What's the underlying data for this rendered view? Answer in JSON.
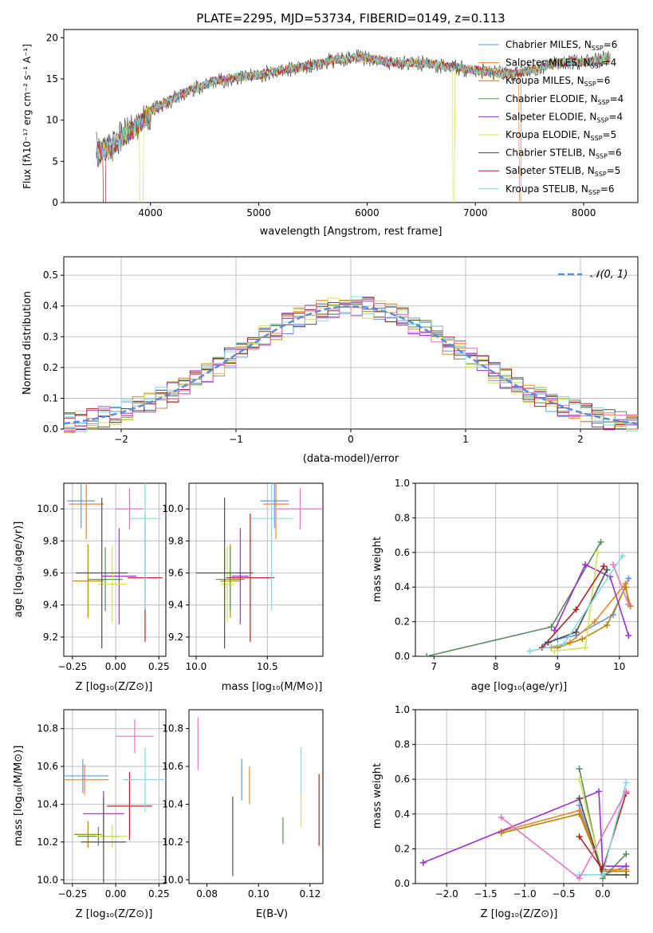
{
  "colors": {
    "axis": "#000000",
    "grid": "#b0b0b0",
    "series": [
      "#6495ed",
      "#e6862e",
      "#b8860b",
      "#5b8a5b",
      "#9a32cd",
      "#d4e157",
      "#4d4d4d",
      "#b22222",
      "#7fdbe0",
      "#e377c2"
    ],
    "normal_curve": "#5b8dd6"
  },
  "chart_data": [
    {
      "id": "spectrum",
      "type": "line",
      "title": "PLATE=2295, MJD=53734, FIBERID=0149, z=0.113",
      "xlabel": "wavelength [Angstrom, rest frame]",
      "ylabel": "Flux [fλ10⁻¹⁷ erg cm⁻² s⁻¹ A⁻¹]",
      "xlim": [
        3200,
        8500
      ],
      "ylim": [
        0,
        21
      ],
      "xticks": [
        4000,
        5000,
        6000,
        7000,
        8000
      ],
      "yticks": [
        0,
        5,
        10,
        15,
        20
      ],
      "grid": false,
      "legend_position": "top-right",
      "x": [
        3500,
        3600,
        3700,
        3800,
        3900,
        4000,
        4100,
        4200,
        4300,
        4400,
        4500,
        4600,
        4700,
        4800,
        4900,
        5000,
        5100,
        5200,
        5300,
        5400,
        5500,
        5600,
        5700,
        5800,
        5900,
        6000,
        6100,
        6200,
        6300,
        6400,
        6500,
        6600,
        6700,
        6800,
        6900,
        7000,
        7100,
        7200,
        7300,
        7400,
        7500,
        7600,
        7700,
        7800,
        7900,
        8000,
        8100,
        8200,
        8250
      ],
      "y": [
        6.5,
        6.2,
        7.5,
        8.5,
        9.5,
        11.0,
        11.8,
        12.5,
        13.3,
        13.8,
        14.2,
        14.8,
        14.9,
        15.2,
        15.3,
        15.4,
        15.8,
        16.0,
        16.2,
        16.4,
        16.8,
        17.0,
        17.3,
        17.4,
        17.6,
        17.5,
        17.3,
        17.0,
        16.9,
        17.0,
        16.9,
        16.8,
        16.6,
        16.5,
        16.2,
        16.1,
        15.9,
        15.7,
        15.6,
        15.7,
        16.0,
        16.4,
        16.8,
        17.0,
        17.1,
        17.0,
        17.2,
        17.4,
        17.6
      ],
      "series": [
        {
          "name": "Chabrier MILES, N",
          "sub": "SSP",
          "suffix": "=6"
        },
        {
          "name": "Salpeter MILES, N",
          "sub": "SSP",
          "suffix": "=4"
        },
        {
          "name": "Kroupa MILES, N",
          "sub": "SSP",
          "suffix": "=6"
        },
        {
          "name": "Chabrier ELODIE, N",
          "sub": "SSP",
          "suffix": "=4"
        },
        {
          "name": "Salpeter ELODIE, N",
          "sub": "SSP",
          "suffix": "=4"
        },
        {
          "name": "Kroupa ELODIE, N",
          "sub": "SSP",
          "suffix": "=5"
        },
        {
          "name": "Chabrier STELIB, N",
          "sub": "SSP",
          "suffix": "=6"
        },
        {
          "name": "Salpeter STELIB, N",
          "sub": "SSP",
          "suffix": "=5"
        },
        {
          "name": "Kroupa STELIB, N",
          "sub": "SSP",
          "suffix": "=6"
        }
      ]
    },
    {
      "id": "residuals",
      "type": "step",
      "xlabel": "(data-model)/error",
      "ylabel": "Normed distribution",
      "xlim": [
        -2.5,
        2.5
      ],
      "ylim": [
        0,
        0.56
      ],
      "xticks": [
        -2,
        -1,
        0,
        1,
        2
      ],
      "xtick_labels": [
        "−2",
        "−1",
        "0",
        "1",
        "2"
      ],
      "yticks": [
        0.0,
        0.1,
        0.2,
        0.3,
        0.4,
        0.5
      ],
      "ytick_labels": [
        "0.0",
        "0.1",
        "0.2",
        "0.3",
        "0.4",
        "0.5"
      ],
      "grid": true,
      "legend_position": "top-right",
      "legend_label": "𝒩(0, 1)",
      "bin_width": 0.1
    },
    {
      "id": "age_vs_Z",
      "type": "errorbar",
      "xlabel": "Z [log₁₀(Z/Z⊙)]",
      "ylabel": "age  [log₁₀(age/yr)]",
      "xlim": [
        -0.3,
        0.29
      ],
      "ylim": [
        9.08,
        10.16
      ],
      "xticks": [
        -0.25,
        0.0,
        0.25
      ],
      "xtick_labels": [
        "−0.25",
        "0.00",
        "0.25"
      ],
      "yticks": [
        9.2,
        9.4,
        9.6,
        9.8,
        10.0
      ],
      "ytick_labels": [
        "9.2",
        "9.4",
        "9.6",
        "9.8",
        "10.0"
      ],
      "grid": true,
      "points": [
        {
          "c": 0,
          "x": -0.2,
          "y": 10.05,
          "xerr": 0.08,
          "yerr": 0.17
        },
        {
          "c": 1,
          "x": -0.17,
          "y": 10.03,
          "xerr": 0.1,
          "yerr": 0.22
        },
        {
          "c": 2,
          "x": -0.16,
          "y": 9.55,
          "xerr": 0.09,
          "yerr": 0.23
        },
        {
          "c": 3,
          "x": -0.06,
          "y": 9.56,
          "xerr": 0.1,
          "yerr": 0.2
        },
        {
          "c": 4,
          "x": 0.02,
          "y": 9.58,
          "xerr": 0.1,
          "yerr": 0.3
        },
        {
          "c": 5,
          "x": -0.02,
          "y": 9.53,
          "xerr": 0.08,
          "yerr": 0.24
        },
        {
          "c": 6,
          "x": -0.08,
          "y": 9.6,
          "xerr": 0.15,
          "yerr": 0.47
        },
        {
          "c": 7,
          "x": 0.17,
          "y": 9.57,
          "xerr": 0.1,
          "yerr": 0.4
        },
        {
          "c": 8,
          "x": 0.17,
          "y": 9.94,
          "xerr": 0.09,
          "yerr": 0.57
        },
        {
          "c": 9,
          "x": 0.08,
          "y": 10.0,
          "xerr": 0.08,
          "yerr": 0.13
        }
      ]
    },
    {
      "id": "age_vs_mass",
      "type": "errorbar",
      "xlabel": "mass [log₁₀(M/M⊙)]",
      "ylabel": "",
      "xlim": [
        9.95,
        10.89
      ],
      "ylim": [
        9.08,
        10.16
      ],
      "xticks": [
        10.0,
        10.5
      ],
      "xtick_labels": [
        "10.0",
        "10.5"
      ],
      "yticks": [
        9.2,
        9.4,
        9.6,
        9.8,
        10.0
      ],
      "ytick_labels": [
        "9.2",
        "9.4",
        "9.6",
        "9.8",
        "10.0"
      ],
      "grid": true,
      "points": [
        {
          "c": 0,
          "x": 10.55,
          "y": 10.05,
          "xerr": 0.1,
          "yerr": 0.17
        },
        {
          "c": 1,
          "x": 10.56,
          "y": 10.03,
          "xerr": 0.09,
          "yerr": 0.22
        },
        {
          "c": 2,
          "x": 10.24,
          "y": 9.55,
          "xerr": 0.07,
          "yerr": 0.23
        },
        {
          "c": 3,
          "x": 10.24,
          "y": 9.56,
          "xerr": 0.1,
          "yerr": 0.2
        },
        {
          "c": 4,
          "x": 10.31,
          "y": 9.58,
          "xerr": 0.06,
          "yerr": 0.3
        },
        {
          "c": 5,
          "x": 10.22,
          "y": 9.53,
          "xerr": 0.05,
          "yerr": 0.24
        },
        {
          "c": 6,
          "x": 10.2,
          "y": 9.6,
          "xerr": 0.2,
          "yerr": 0.47
        },
        {
          "c": 7,
          "x": 10.38,
          "y": 9.57,
          "xerr": 0.17,
          "yerr": 0.4
        },
        {
          "c": 8,
          "x": 10.53,
          "y": 9.94,
          "xerr": 0.15,
          "yerr": 0.57
        },
        {
          "c": 9,
          "x": 10.73,
          "y": 10.0,
          "xerr": 0.16,
          "yerr": 0.13
        }
      ]
    },
    {
      "id": "weight_vs_age",
      "type": "line",
      "xlabel": "age  [log₁₀(age/yr)]",
      "ylabel": "mass weight",
      "xlim": [
        6.7,
        10.3
      ],
      "ylim": [
        0,
        1
      ],
      "xticks": [
        7,
        8,
        9,
        10
      ],
      "xtick_labels": [
        "7",
        "8",
        "9",
        "10"
      ],
      "yticks": [
        0.0,
        0.2,
        0.4,
        0.6,
        0.8,
        1.0
      ],
      "ytick_labels": [
        "0.0",
        "0.2",
        "0.4",
        "0.6",
        "0.8",
        "1.0"
      ],
      "grid": true,
      "series": [
        {
          "c": 0,
          "x": [
            8.8,
            9.0,
            9.3,
            9.9,
            10.15
          ],
          "y": [
            0.07,
            0.1,
            0.12,
            0.24,
            0.45
          ]
        },
        {
          "c": 1,
          "x": [
            8.9,
            9.2,
            9.6,
            10.1,
            10.15
          ],
          "y": [
            0.05,
            0.08,
            0.2,
            0.42,
            0.3
          ]
        },
        {
          "c": 2,
          "x": [
            9.0,
            9.4,
            9.8,
            10.1,
            10.18
          ],
          "y": [
            0.05,
            0.1,
            0.18,
            0.4,
            0.29
          ]
        },
        {
          "c": 3,
          "x": [
            6.88,
            8.9,
            9.7
          ],
          "y": [
            0.0,
            0.17,
            0.66
          ]
        },
        {
          "c": 4,
          "x": [
            8.95,
            9.45,
            9.85,
            10.15
          ],
          "y": [
            0.15,
            0.53,
            0.46,
            0.12
          ]
        },
        {
          "c": 5,
          "x": [
            8.95,
            9.45,
            9.65
          ],
          "y": [
            0.03,
            0.05,
            0.6
          ]
        },
        {
          "c": 6,
          "x": [
            8.85,
            9.3,
            9.8
          ],
          "y": [
            0.08,
            0.14,
            0.5
          ]
        },
        {
          "c": 7,
          "x": [
            8.75,
            9.3,
            9.75
          ],
          "y": [
            0.05,
            0.27,
            0.52
          ]
        },
        {
          "c": 8,
          "x": [
            8.55,
            9.1,
            10.05
          ],
          "y": [
            0.03,
            0.07,
            0.58
          ]
        },
        {
          "c": 9,
          "x": [
            9.9,
            10.15
          ],
          "y": [
            0.53,
            0.3
          ]
        }
      ]
    },
    {
      "id": "mass_vs_Z",
      "type": "errorbar",
      "xlabel": "Z [log₁₀(Z/Z⊙)]",
      "ylabel": "mass [log₁₀(M/M⊙)]",
      "xlim": [
        -0.3,
        0.29
      ],
      "ylim": [
        9.98,
        10.9
      ],
      "xticks": [
        -0.25,
        0.0,
        0.25
      ],
      "xtick_labels": [
        "−0.25",
        "0.00",
        "0.25"
      ],
      "yticks": [
        10.0,
        10.2,
        10.4,
        10.6,
        10.8
      ],
      "ytick_labels": [
        "10.0",
        "10.2",
        "10.4",
        "10.6",
        "10.8"
      ],
      "grid": true,
      "points": [
        {
          "c": 0,
          "x": -0.19,
          "y": 10.55,
          "xerr": 0.15,
          "yerr": 0.09
        },
        {
          "c": 1,
          "x": -0.18,
          "y": 10.53,
          "xerr": 0.14,
          "yerr": 0.08
        },
        {
          "c": 2,
          "x": -0.16,
          "y": 10.24,
          "xerr": 0.08,
          "yerr": 0.07
        },
        {
          "c": 3,
          "x": -0.1,
          "y": 10.23,
          "xerr": 0.12,
          "yerr": 0.05
        },
        {
          "c": 4,
          "x": -0.07,
          "y": 10.35,
          "xerr": 0.12,
          "yerr": 0.12
        },
        {
          "c": 5,
          "x": -0.02,
          "y": 10.23,
          "xerr": 0.09,
          "yerr": 0.06
        },
        {
          "c": 6,
          "x": -0.07,
          "y": 10.2,
          "xerr": 0.13,
          "yerr": 0.24
        },
        {
          "c": 7,
          "x": 0.08,
          "y": 10.39,
          "xerr": 0.13,
          "yerr": 0.18
        },
        {
          "c": 8,
          "x": 0.17,
          "y": 10.53,
          "xerr": 0.13,
          "yerr": 0.17
        },
        {
          "c": 9,
          "x": 0.11,
          "y": 10.76,
          "xerr": 0.11,
          "yerr": 0.09
        }
      ]
    },
    {
      "id": "mass_vs_ebv",
      "type": "errorbar",
      "xlabel": "E(B-V)",
      "ylabel": "",
      "xlim": [
        0.073,
        0.125
      ],
      "ylim": [
        9.98,
        10.9
      ],
      "xticks": [
        0.08,
        0.1,
        0.12
      ],
      "xtick_labels": [
        "0.08",
        "0.10",
        "0.12"
      ],
      "yticks": [
        10.0,
        10.2,
        10.4,
        10.6,
        10.8
      ],
      "ytick_labels": [
        "10.0",
        "10.2",
        "10.4",
        "10.6",
        "10.8"
      ],
      "grid": false,
      "points": [
        {
          "c": 0,
          "x": 0.0935,
          "y": 10.53,
          "xerr": 0,
          "yerr": 0.11
        },
        {
          "c": 1,
          "x": 0.0965,
          "y": 10.5,
          "xerr": 0,
          "yerr": 0.1
        },
        {
          "c": 3,
          "x": 0.1095,
          "y": 10.26,
          "xerr": 0,
          "yerr": 0.07
        },
        {
          "c": 5,
          "x": 0.1165,
          "y": 10.38,
          "xerr": 0,
          "yerr": 0.1
        },
        {
          "c": 6,
          "x": 0.09,
          "y": 10.23,
          "xerr": 0,
          "yerr": 0.21
        },
        {
          "c": 7,
          "x": 0.1235,
          "y": 10.37,
          "xerr": 0,
          "yerr": 0.19
        },
        {
          "c": 8,
          "x": 0.1165,
          "y": 10.58,
          "xerr": 0,
          "yerr": 0.12
        },
        {
          "c": 9,
          "x": 0.0765,
          "y": 10.72,
          "xerr": 0,
          "yerr": 0.14
        }
      ]
    },
    {
      "id": "weight_vs_Z",
      "type": "line",
      "xlabel": "Z [log₁₀(Z/Z⊙)]",
      "ylabel": "mass weight",
      "xlim": [
        -2.4,
        0.45
      ],
      "ylim": [
        0,
        1
      ],
      "xticks": [
        -2.0,
        -1.5,
        -1.0,
        -0.5,
        0.0
      ],
      "xtick_labels": [
        "−2.0",
        "−1.5",
        "−1.0",
        "−0.5",
        "0.0"
      ],
      "yticks": [
        0.0,
        0.2,
        0.4,
        0.6,
        0.8,
        1.0
      ],
      "ytick_labels": [
        "0.0",
        "0.2",
        "0.4",
        "0.6",
        "0.8",
        "1.0"
      ],
      "grid": true,
      "series": [
        {
          "c": 0,
          "x": [
            -0.3,
            0.0,
            0.3
          ],
          "y": [
            0.45,
            0.05,
            0.1
          ]
        },
        {
          "c": 1,
          "x": [
            -1.3,
            -0.3,
            0.0,
            0.3
          ],
          "y": [
            0.3,
            0.42,
            0.08,
            0.08
          ]
        },
        {
          "c": 2,
          "x": [
            -1.3,
            -0.3,
            0.0,
            0.3
          ],
          "y": [
            0.29,
            0.4,
            0.07,
            0.07
          ]
        },
        {
          "c": 3,
          "x": [
            -0.3,
            0.0,
            0.3
          ],
          "y": [
            0.66,
            0.03,
            0.17
          ]
        },
        {
          "c": 4,
          "x": [
            -2.3,
            -0.05,
            0.0,
            0.3
          ],
          "y": [
            0.12,
            0.53,
            0.1,
            0.1
          ]
        },
        {
          "c": 5,
          "x": [
            -0.3,
            0.0,
            0.3
          ],
          "y": [
            0.6,
            0.05,
            0.05
          ]
        },
        {
          "c": 6,
          "x": [
            -0.3,
            0.0,
            0.3
          ],
          "y": [
            0.49,
            0.05,
            0.05
          ]
        },
        {
          "c": 7,
          "x": [
            -0.3,
            0.0,
            0.3
          ],
          "y": [
            0.27,
            0.08,
            0.52
          ]
        },
        {
          "c": 8,
          "x": [
            -0.3,
            0.0,
            0.3
          ],
          "y": [
            0.05,
            0.05,
            0.58
          ]
        },
        {
          "c": 9,
          "x": [
            -1.3,
            -0.3,
            0.3
          ],
          "y": [
            0.38,
            0.03,
            0.53
          ]
        }
      ]
    }
  ]
}
